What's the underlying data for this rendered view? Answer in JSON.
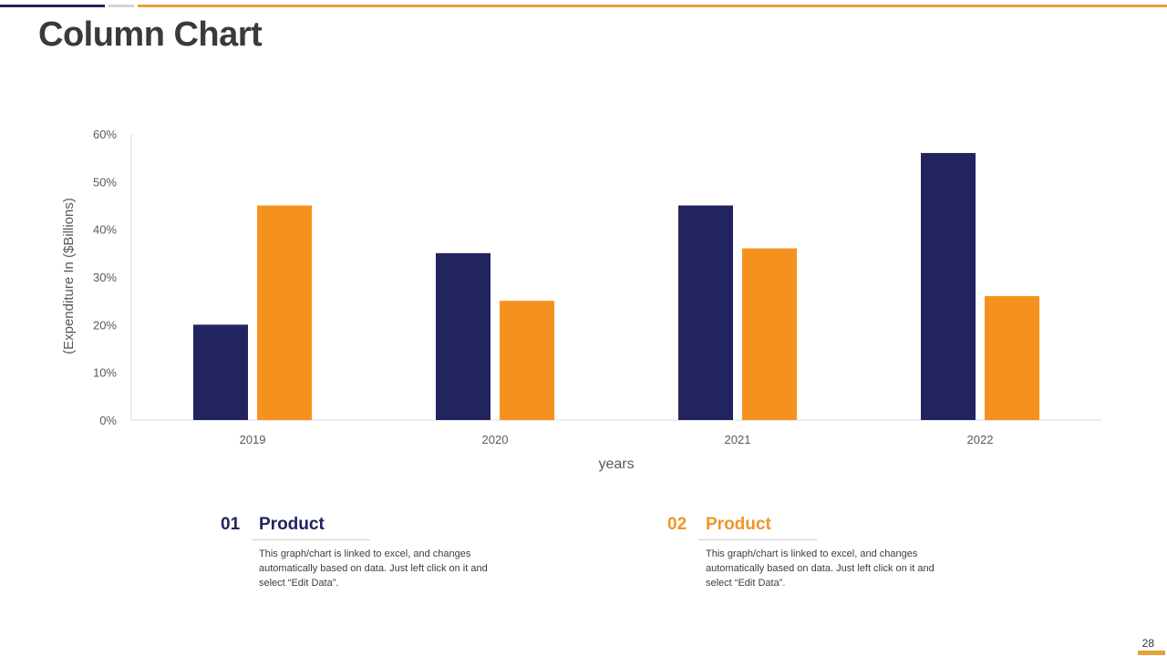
{
  "slide": {
    "title": "Column Chart",
    "page_number": "28"
  },
  "colors": {
    "navy": "#22245f",
    "orange": "#f5921f",
    "accent_orange": "#e6a13d",
    "axis": "#d9d9d9",
    "text": "#595959"
  },
  "chart_data": {
    "type": "bar",
    "categories": [
      "2019",
      "2020",
      "2021",
      "2022"
    ],
    "series": [
      {
        "name": "Product 01",
        "values": [
          20,
          35,
          45,
          56
        ]
      },
      {
        "name": "Product 02",
        "values": [
          45,
          25,
          36,
          26
        ]
      }
    ],
    "title": "",
    "xlabel": "years",
    "ylabel": "(Expenditure In ($Billions)",
    "ylim": [
      0,
      60
    ],
    "yticks": [
      0,
      10,
      20,
      30,
      40,
      50,
      60
    ],
    "ytick_labels": [
      "0%",
      "10%",
      "20%",
      "30%",
      "40%",
      "50%",
      "60%"
    ],
    "grid": false
  },
  "legend": [
    {
      "number": "01",
      "title": "Product",
      "description": "This graph/chart is linked to excel, and changes automatically based on data. Just left click on it and select “Edit Data”."
    },
    {
      "number": "02",
      "title": "Product",
      "description": "This graph/chart is linked to excel, and changes automatically based on data. Just left click on it and select “Edit Data”."
    }
  ]
}
